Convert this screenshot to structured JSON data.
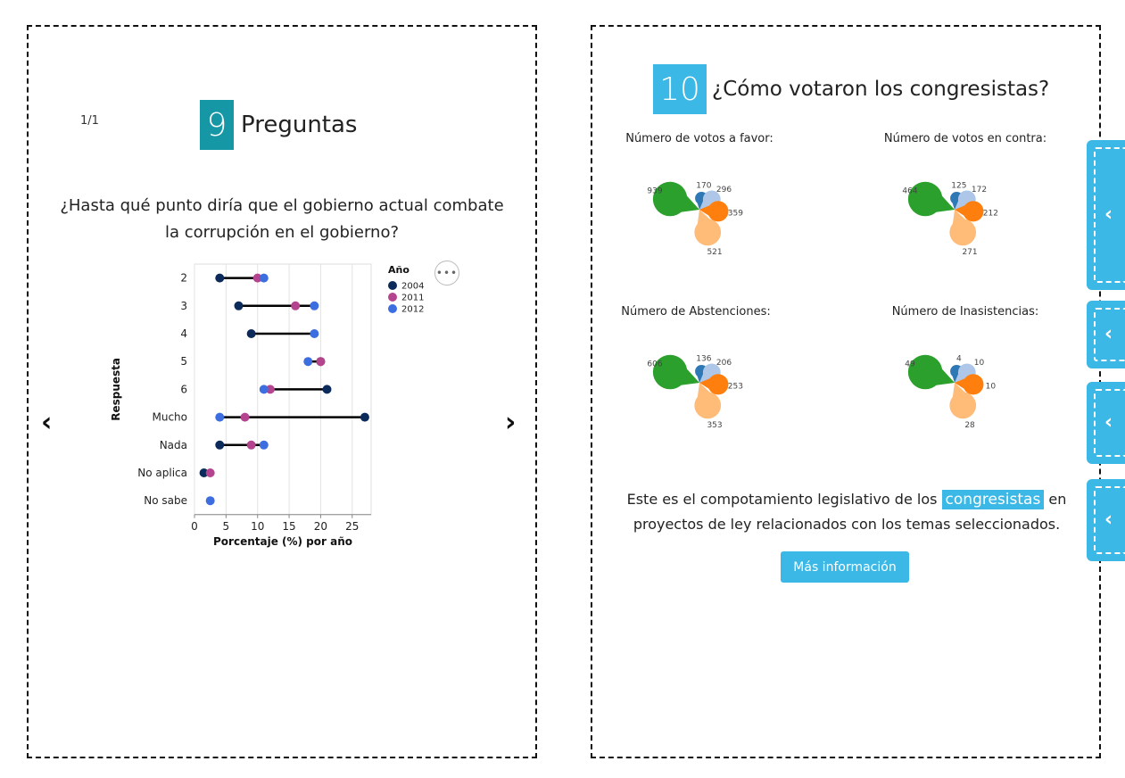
{
  "left_card": {
    "page_indicator": "1/1",
    "number": "9",
    "title": "Preguntas",
    "question_line1": "¿Hasta qué punto diría que el gobierno actual combate",
    "question_line2": "la corrupción en el gobierno?",
    "prev_arrow": "‹",
    "next_arrow": "›",
    "more_button": "•••"
  },
  "chart_data": {
    "type": "scatter",
    "subtype": "dumbbell",
    "categories": [
      "2",
      "3",
      "4",
      "5",
      "6",
      "Mucho",
      "Nada",
      "No aplica",
      "No sabe"
    ],
    "series": [
      {
        "name": "2004",
        "color": "#0d2b5a",
        "values": [
          4,
          7,
          9,
          20,
          21,
          27,
          4,
          1.5,
          null
        ]
      },
      {
        "name": "2011",
        "color": "#b5448f",
        "values": [
          10,
          16,
          null,
          20,
          12,
          8,
          9,
          2.5,
          null
        ]
      },
      {
        "name": "2012",
        "color": "#3c6ee0",
        "values": [
          11,
          19,
          19,
          18,
          11,
          4,
          11,
          null,
          2.5
        ]
      }
    ],
    "xlabel": "Porcentaje (%) por año",
    "ylabel": "Respuesta",
    "legend_title": "Año",
    "xlim": [
      0,
      28
    ],
    "xticks": [
      0,
      5,
      10,
      15,
      20,
      25
    ],
    "grid": true,
    "legend_position": "top-right"
  },
  "right_card": {
    "number": "10",
    "title": "¿Cómo votaron los congresistas?",
    "pies": [
      {
        "caption": "Número de votos a favor:",
        "values": [
          170,
          296,
          359,
          521,
          939
        ]
      },
      {
        "caption": "Número de votos en contra:",
        "values": [
          125,
          172,
          212,
          271,
          464
        ]
      },
      {
        "caption": "Número de Abstenciones:",
        "values": [
          136,
          206,
          253,
          353,
          606
        ]
      },
      {
        "caption": "Número de Inasistencias:",
        "values": [
          4,
          10,
          10,
          28,
          49
        ]
      }
    ],
    "pie_colors": [
      "#2f78b6",
      "#aec7e8",
      "#ff7f0e",
      "#ffbb78",
      "#2ca02c"
    ],
    "body_before": "Este es el compotamiento legislativo de los",
    "body_highlight": "congresistas",
    "body_after": "en",
    "body_line2": "proyectos de ley relacionados con los temas seleccionados.",
    "button_label": "Más información"
  },
  "side_tabs": [
    {
      "icon": "‹"
    },
    {
      "icon": "‹"
    },
    {
      "icon": "‹"
    },
    {
      "icon": "‹"
    }
  ]
}
